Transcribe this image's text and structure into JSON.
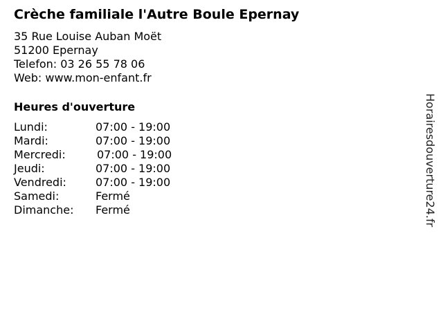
{
  "title": "Crèche familiale l'Autre Boule Epernay",
  "address": {
    "street": "35 Rue Louise Auban Moët",
    "city": "51200 Epernay",
    "phone": "Telefon: 03 26 55 78 06",
    "web": "Web: www.mon-enfant.fr"
  },
  "hours_heading": "Heures d'ouverture",
  "hours": [
    {
      "day": "Lundi:",
      "time": "07:00 - 19:00"
    },
    {
      "day": "Mardi:",
      "time": "07:00 - 19:00"
    },
    {
      "day": "Mercredi:",
      "time": "07:00 - 19:00"
    },
    {
      "day": "Jeudi:",
      "time": "07:00 - 19:00"
    },
    {
      "day": "Vendredi:",
      "time": "07:00 - 19:00"
    },
    {
      "day": "Samedi:",
      "time": "Fermé"
    },
    {
      "day": "Dimanche:",
      "time": "Fermé"
    }
  ],
  "watermark": "Horairesdouverture24.fr"
}
